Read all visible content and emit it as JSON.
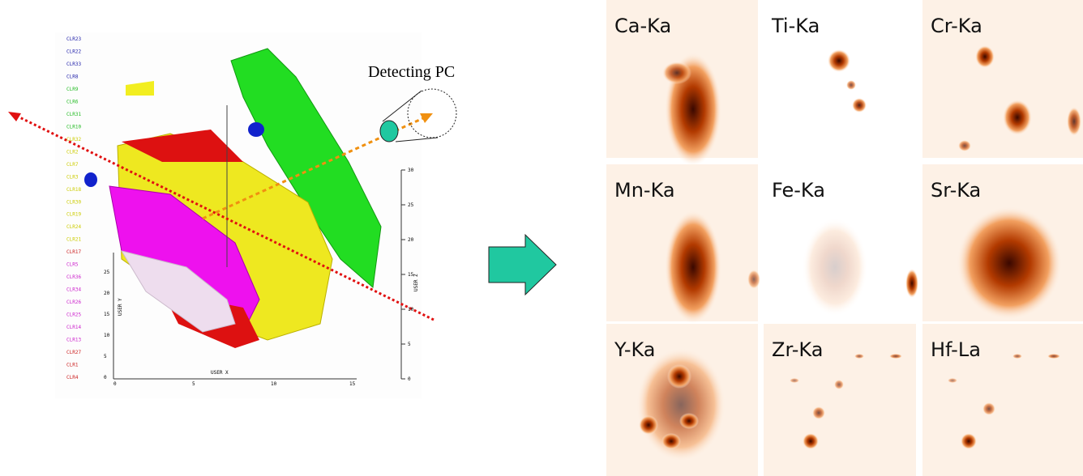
{
  "detector_label": "Detecting PC",
  "cluster_labels": [
    "CLR23",
    "CLR22",
    "CLR33",
    "CLR8",
    "CLR9",
    "CLR6",
    "CLR31",
    "CLR10",
    "CLR32",
    "CLR2",
    "CLR7",
    "CLR3",
    "CLR18",
    "CLR30",
    "CLR19",
    "CLR24",
    "CLR21",
    "CLR17",
    "CLR5",
    "CLR36",
    "CLR34",
    "CLR26",
    "CLR25",
    "CLR14",
    "CLR13",
    "CLR27",
    "CLR1",
    "CLR4"
  ],
  "axes": {
    "x_label": "USER X",
    "y_label": "USER Y",
    "z_label": "USER Z",
    "x_ticks": [
      "0",
      "5",
      "10",
      "15"
    ],
    "y_ticks": [
      "0",
      "5",
      "10",
      "15",
      "20",
      "25"
    ],
    "z_ticks": [
      "0",
      "5",
      "10",
      "15",
      "20",
      "25",
      "30"
    ]
  },
  "panels": [
    {
      "label": "Ca-Ka"
    },
    {
      "label": "Ti-Ka"
    },
    {
      "label": "Cr-Ka"
    },
    {
      "label": "Mn-Ka"
    },
    {
      "label": "Fe-Ka"
    },
    {
      "label": "Sr-Ka"
    },
    {
      "label": "Y-Ka"
    },
    {
      "label": "Zr-Ka"
    },
    {
      "label": "Hf-La"
    }
  ]
}
